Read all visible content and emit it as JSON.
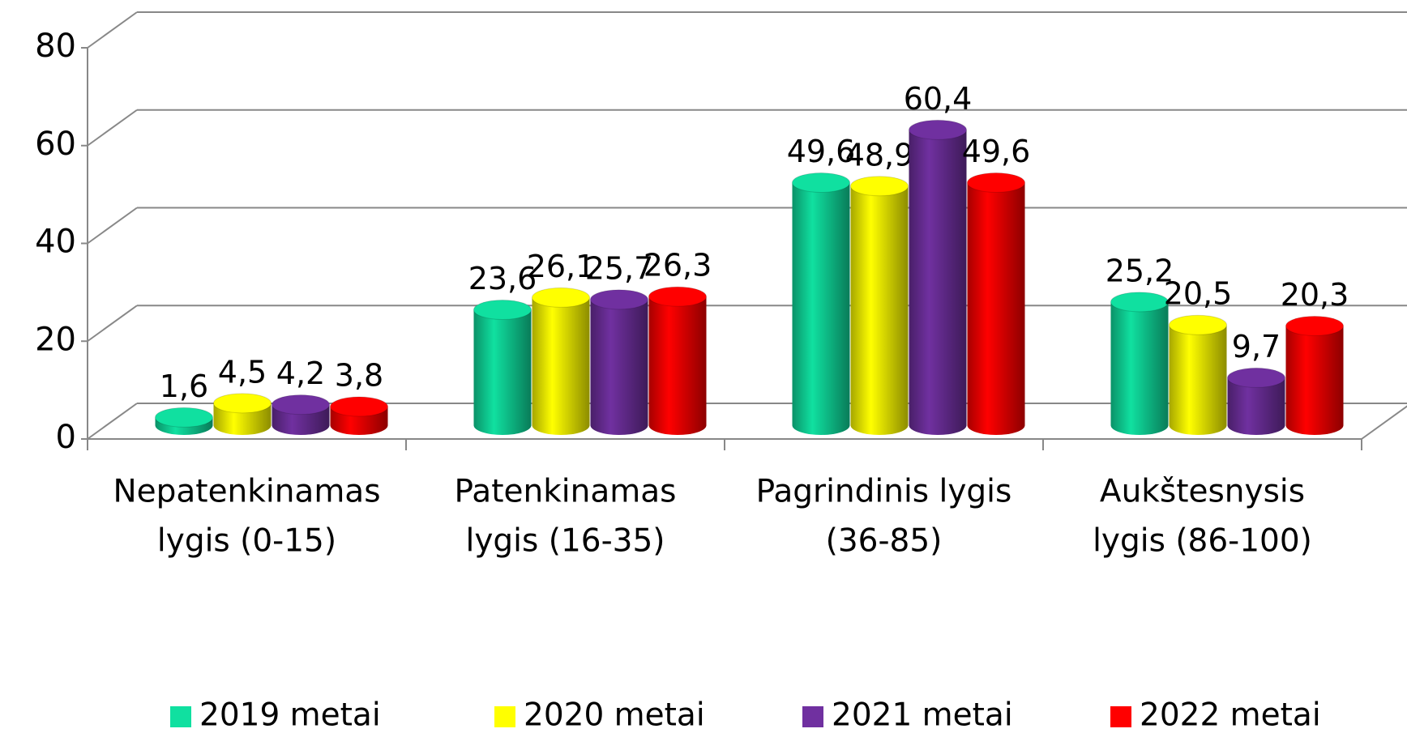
{
  "chart_data": {
    "type": "bar3d",
    "categories": [
      [
        "Nepatenkinamas",
        "lygis (0-15)"
      ],
      [
        "Patenkinamas",
        "lygis (16-35)"
      ],
      [
        "Pagrindinis lygis",
        "(36-85)"
      ],
      [
        "Aukštesnysis",
        "lygis (86-100)"
      ]
    ],
    "series": [
      {
        "name": "2019 metai",
        "color": "#10e0a0",
        "values": [
          1.6,
          23.6,
          49.6,
          25.2
        ],
        "value_labels": [
          "1,6",
          "23,6",
          "49,6",
          "25,2"
        ]
      },
      {
        "name": "2020 metai",
        "color": "#ffff00",
        "values": [
          4.5,
          26.1,
          48.9,
          20.5
        ],
        "value_labels": [
          "4,5",
          "26,1",
          "48,9",
          "20,5"
        ]
      },
      {
        "name": "2021 metai",
        "color": "#7030a0",
        "values": [
          4.2,
          25.7,
          60.4,
          9.7
        ],
        "value_labels": [
          "4,2",
          "25,7",
          "60,4",
          "9,7"
        ]
      },
      {
        "name": "2022 metai",
        "color": "#ff0000",
        "values": [
          3.8,
          26.3,
          49.6,
          20.3
        ],
        "value_labels": [
          "3,8",
          "26,3",
          "49,6",
          "20,3"
        ]
      }
    ],
    "ylim": [
      0,
      80
    ],
    "yticks": [
      0,
      20,
      40,
      60,
      80
    ],
    "grid": true,
    "legend": "bottom"
  }
}
